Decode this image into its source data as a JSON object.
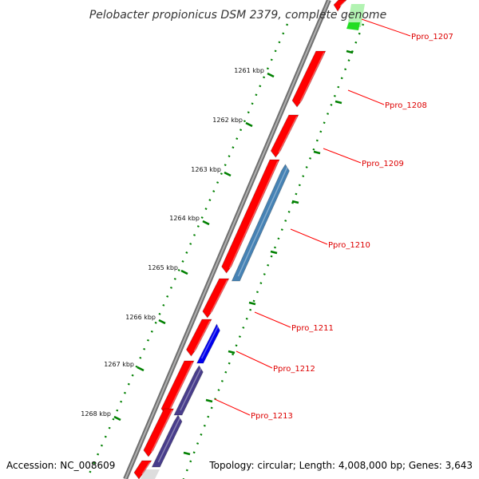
{
  "title": "Pelobacter propionicus DSM 2379, complete genome",
  "footer": {
    "accession": "Accession: NC_008609",
    "stats": "Topology: circular; Length: 4,008,000 bp; Genes: 3,643"
  },
  "scale_labels": [
    "1261 kbp",
    "1262 kbp",
    "1263 kbp",
    "1264 kbp",
    "1265 kbp",
    "1266 kbp",
    "1267 kbp",
    "1268 kbp"
  ],
  "gene_labels": [
    "Ppro_1207",
    "Ppro_1208",
    "Ppro_1209",
    "Ppro_1210",
    "Ppro_1211",
    "Ppro_1212",
    "Ppro_1213"
  ],
  "colors": {
    "backbone": "#888888",
    "forward_gene": "#ff0000",
    "reverse_gene_steel": "#4682b4",
    "reverse_gene_blue": "#0000ee",
    "reverse_gene_slate": "#483d8b",
    "highlight_gene": "#22dd22",
    "tick_dots": "#008000",
    "label_line": "#ff0000",
    "label_text": "#dd0000"
  }
}
